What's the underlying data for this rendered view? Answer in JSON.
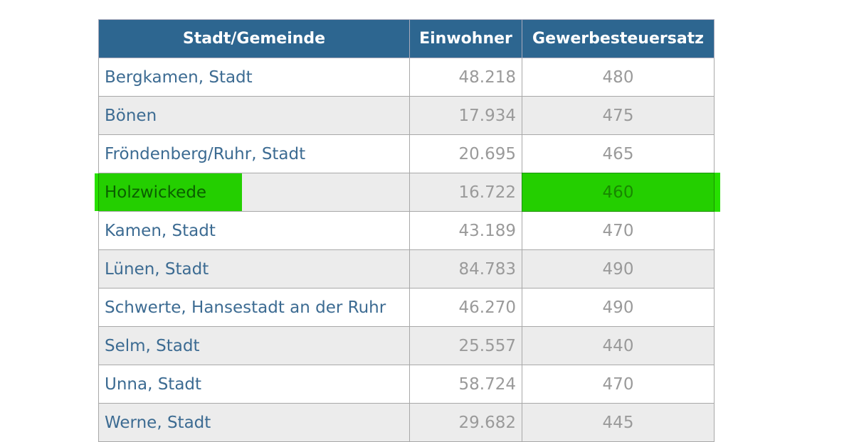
{
  "table": {
    "header": [
      "Stadt/Gemeinde",
      "Einwohner",
      "Gewerbesteuersatz"
    ],
    "rows": [
      [
        "Bergkamen, Stadt",
        "48.218",
        "480"
      ],
      [
        "Bönen",
        "17.934",
        "475"
      ],
      [
        "Fröndenberg/Ruhr, Stadt",
        "20.695",
        "465"
      ],
      [
        "Holzwickede",
        "16.722",
        "460"
      ],
      [
        "Kamen, Stadt",
        "43.189",
        "470"
      ],
      [
        "Lünen, Stadt",
        "84.783",
        "490"
      ],
      [
        "Schwerte, Hansestadt an der Ruhr",
        "46.270",
        "490"
      ],
      [
        "Selm, Stadt",
        "25.557",
        "440"
      ],
      [
        "Unna, Stadt",
        "58.724",
        "470"
      ],
      [
        "Werne, Stadt",
        "29.682",
        "445"
      ]
    ]
  }
}
